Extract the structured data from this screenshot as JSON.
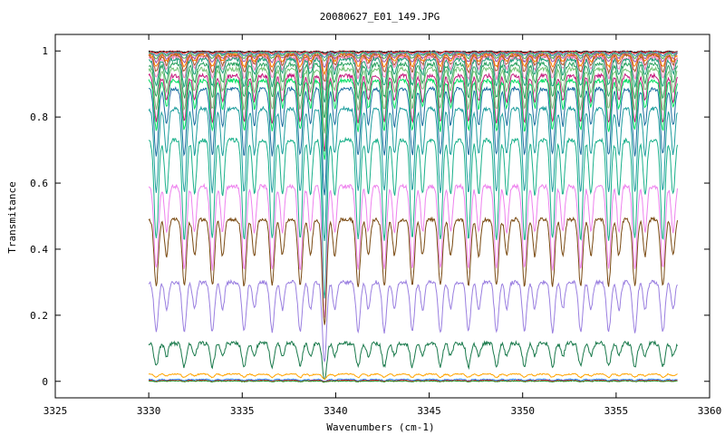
{
  "chart_data": {
    "type": "line",
    "title": "20080627_E01_149.JPG",
    "xlabel": "Wavenumbers (cm-1)",
    "ylabel": "Transmitance",
    "xlim": [
      3325,
      3360
    ],
    "ylim": [
      -0.05,
      1.05
    ],
    "x_ticks": [
      3325,
      3330,
      3335,
      3340,
      3345,
      3350,
      3355,
      3360
    ],
    "x_tick_labels": [
      "3325",
      "3330",
      "3335",
      "3340",
      "3345",
      "3350",
      "3355",
      "3360"
    ],
    "y_ticks": [
      0,
      0.2,
      0.4,
      0.6,
      0.8,
      1
    ],
    "y_tick_labels": [
      "0",
      "0.2",
      "0.4",
      "0.6",
      "0.8",
      "1"
    ],
    "grid": false,
    "legend": "none",
    "x_range_of_data": [
      3330,
      3358.3
    ],
    "absorption_line_positions": [
      3330.4,
      3331.9,
      3333.4,
      3335.1,
      3336.6,
      3338.1,
      3339.4,
      3341.2,
      3342.6,
      3344.1,
      3345.6,
      3347.1,
      3348.6,
      3350.1,
      3351.6,
      3353.1,
      3354.6,
      3356.0,
      3357.5
    ],
    "series": [
      {
        "color": "#000000",
        "baseline": 0.999,
        "line_depth": 0.003
      },
      {
        "color": "#e41a1c",
        "baseline": 0.998,
        "line_depth": 0.006
      },
      {
        "color": "#377eb8",
        "baseline": 0.996,
        "line_depth": 0.01
      },
      {
        "color": "#4daf4a",
        "baseline": 0.994,
        "line_depth": 0.016
      },
      {
        "color": "#984ea3",
        "baseline": 0.991,
        "line_depth": 0.024
      },
      {
        "color": "#ff7f00",
        "baseline": 0.988,
        "line_depth": 0.035
      },
      {
        "color": "#a65628",
        "baseline": 0.985,
        "line_depth": 0.048
      },
      {
        "color": "#f781bf",
        "baseline": 0.98,
        "line_depth": 0.063
      },
      {
        "color": "#1b9e77",
        "baseline": 0.975,
        "line_depth": 0.08
      },
      {
        "color": "#2ca25f",
        "baseline": 0.96,
        "line_depth": 0.1
      },
      {
        "color": "#74c476",
        "baseline": 0.945,
        "line_depth": 0.12
      },
      {
        "color": "#c51b7d",
        "baseline": 0.925,
        "line_depth": 0.14
      },
      {
        "color": "#00e060",
        "baseline": 0.91,
        "line_depth": 0.15
      },
      {
        "color": "#1a6e9e",
        "baseline": 0.885,
        "line_depth": 0.2
      },
      {
        "color": "#1f9e9e",
        "baseline": 0.825,
        "line_depth": 0.25
      },
      {
        "color": "#19b08a",
        "baseline": 0.73,
        "line_depth": 0.3
      },
      {
        "color": "#ee82ee",
        "baseline": 0.59,
        "line_depth": 0.25
      },
      {
        "color": "#7a4a12",
        "baseline": 0.49,
        "line_depth": 0.2
      },
      {
        "color": "#9a7fe0",
        "baseline": 0.3,
        "line_depth": 0.15
      },
      {
        "color": "#1a7a4c",
        "baseline": 0.115,
        "line_depth": 0.07
      },
      {
        "color": "#ffa500",
        "baseline": 0.022,
        "line_depth": 0.01
      },
      {
        "color": "#1e90ff",
        "baseline": 0.006,
        "line_depth": 0.004
      },
      {
        "color": "#dc143c",
        "baseline": 0.003,
        "line_depth": 0.003
      },
      {
        "color": "#228b22",
        "baseline": 0.001,
        "line_depth": 0.002
      }
    ]
  }
}
